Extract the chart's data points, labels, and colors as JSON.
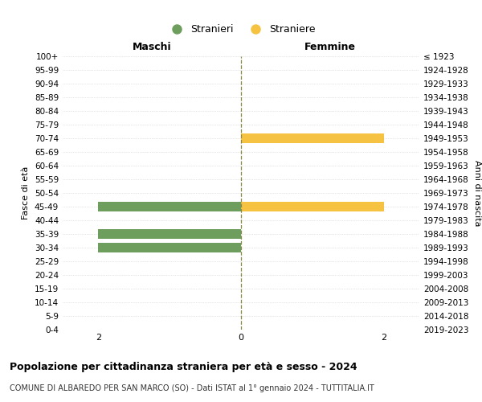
{
  "age_groups": [
    "100+",
    "95-99",
    "90-94",
    "85-89",
    "80-84",
    "75-79",
    "70-74",
    "65-69",
    "60-64",
    "55-59",
    "50-54",
    "45-49",
    "40-44",
    "35-39",
    "30-34",
    "25-29",
    "20-24",
    "15-19",
    "10-14",
    "5-9",
    "0-4"
  ],
  "birth_years": [
    "≤ 1923",
    "1924-1928",
    "1929-1933",
    "1934-1938",
    "1939-1943",
    "1944-1948",
    "1949-1953",
    "1954-1958",
    "1959-1963",
    "1964-1968",
    "1969-1973",
    "1974-1978",
    "1979-1983",
    "1984-1988",
    "1989-1993",
    "1994-1998",
    "1999-2003",
    "2004-2008",
    "2009-2013",
    "2014-2018",
    "2019-2023"
  ],
  "males": [
    0,
    0,
    0,
    0,
    0,
    0,
    0,
    0,
    0,
    0,
    0,
    2,
    0,
    2,
    2,
    0,
    0,
    0,
    0,
    0,
    0
  ],
  "females": [
    0,
    0,
    0,
    0,
    0,
    0,
    2,
    0,
    0,
    0,
    0,
    2,
    0,
    0,
    0,
    0,
    0,
    0,
    0,
    0,
    0
  ],
  "male_color": "#6e9e5e",
  "female_color": "#f5c242",
  "xlim": 2.5,
  "title": "Popolazione per cittadinanza straniera per età e sesso - 2024",
  "subtitle": "COMUNE DI ALBAREDO PER SAN MARCO (SO) - Dati ISTAT al 1° gennaio 2024 - TUTTITALIA.IT",
  "header_left": "Maschi",
  "header_right": "Femmine",
  "ylabel_left": "Fasce di età",
  "ylabel_right": "Anni di nascita",
  "legend_male": "Stranieri",
  "legend_female": "Straniere",
  "bg_color": "#ffffff",
  "grid_color": "#cccccc",
  "bar_height": 0.75,
  "xticks": [
    -2,
    0,
    2
  ],
  "xtick_labels": [
    "2",
    "0",
    "2"
  ]
}
